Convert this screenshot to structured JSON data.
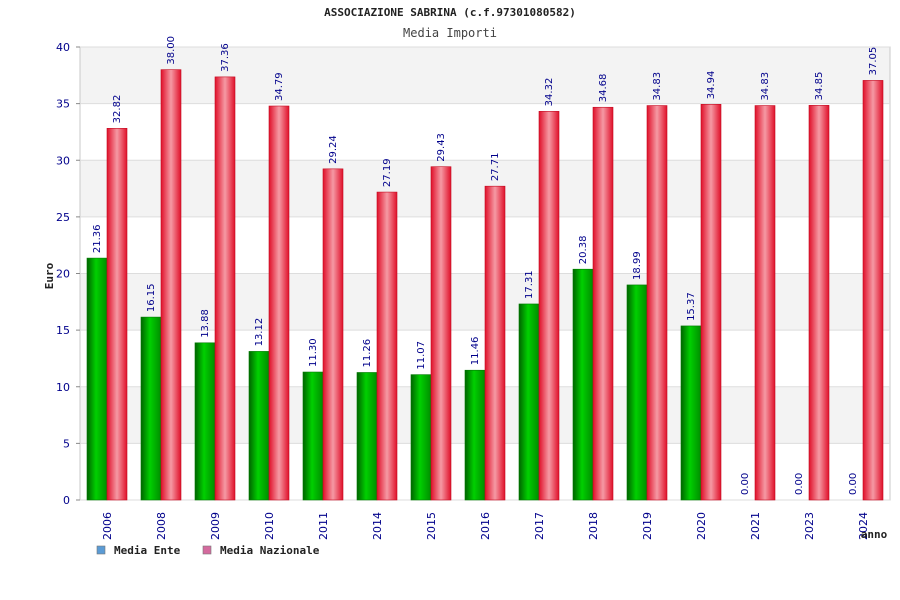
{
  "chart_data": {
    "type": "bar",
    "title": "ASSOCIAZIONE SABRINA (c.f.97301080582)",
    "subtitle": "Media Importi",
    "ylabel": "Euro",
    "xlabel": "anno",
    "ylim": [
      0,
      40
    ],
    "yticks": [
      "0",
      "5",
      "10",
      "15",
      "20",
      "25",
      "30",
      "35",
      "40"
    ],
    "grid": true,
    "legend_position": "bottom-left",
    "categories": [
      "2006",
      "2008",
      "2009",
      "2010",
      "2011",
      "2014",
      "2015",
      "2016",
      "2017",
      "2018",
      "2019",
      "2020",
      "2021",
      "2023",
      "2024"
    ],
    "series": [
      {
        "name": "Media Ente",
        "color": "#00b400",
        "legend_color": "#5b9bd5",
        "values": [
          21.36,
          16.15,
          13.88,
          13.12,
          11.3,
          11.26,
          11.07,
          11.46,
          17.31,
          20.38,
          18.99,
          15.37,
          0.0,
          0.0,
          0.0
        ],
        "labels": [
          "21.36",
          "16.15",
          "13.88",
          "13.12",
          "11.30",
          "11.26",
          "11.07",
          "11.46",
          "17.31",
          "20.38",
          "18.99",
          "15.37",
          "0.00",
          "0.00",
          "0.00"
        ]
      },
      {
        "name": "Media Nazionale",
        "color": "#e8112d",
        "legend_color": "#d46a9e",
        "values": [
          32.82,
          38.0,
          37.36,
          34.79,
          29.24,
          27.19,
          29.43,
          27.71,
          34.32,
          34.68,
          34.83,
          34.94,
          34.83,
          34.85,
          37.05
        ],
        "labels": [
          "32.82",
          "38.00",
          "37.36",
          "34.79",
          "29.24",
          "27.19",
          "29.43",
          "27.71",
          "34.32",
          "34.68",
          "34.83",
          "34.94",
          "34.83",
          "34.85",
          "37.05"
        ]
      }
    ]
  }
}
